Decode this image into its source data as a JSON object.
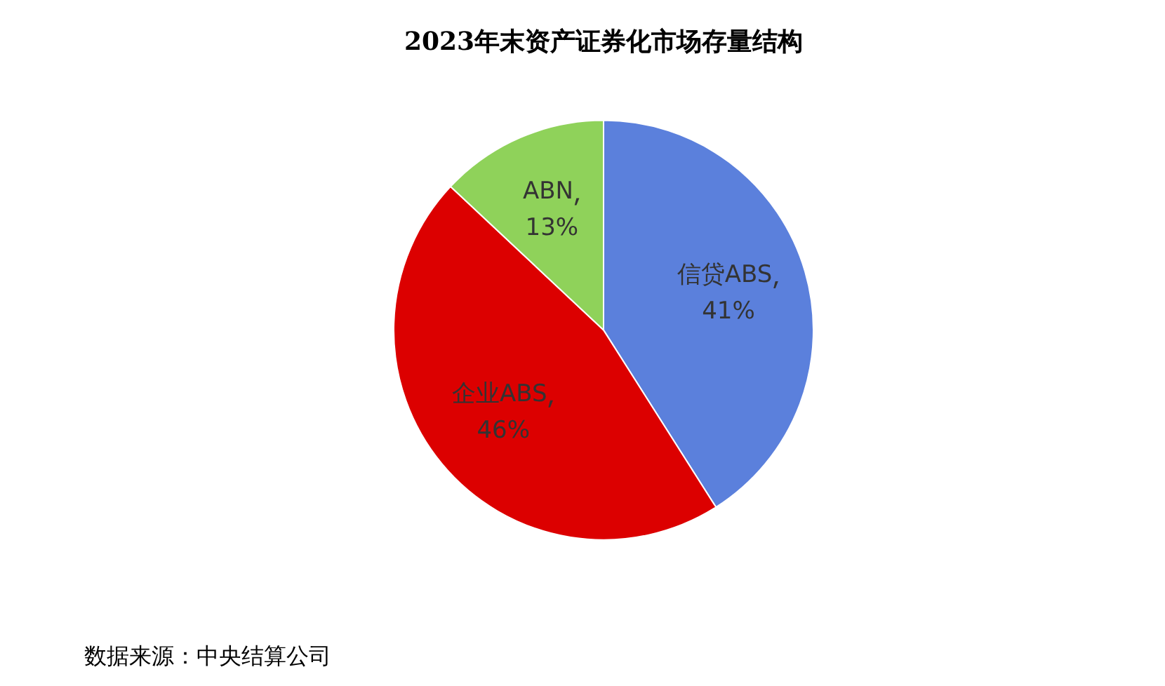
{
  "chart_data": {
    "type": "pie",
    "title": "2023年末资产证券化市场存量结构",
    "categories": [
      "信贷ABS",
      "企业ABS",
      "ABN"
    ],
    "values": [
      41,
      46,
      13
    ],
    "colors": [
      "#5b80dc",
      "#dc0000",
      "#8fd25a"
    ],
    "value_labels": [
      "41%",
      "46%",
      "13%"
    ],
    "legend": false,
    "annotations": [
      "数据来源：中央结算公司"
    ]
  }
}
